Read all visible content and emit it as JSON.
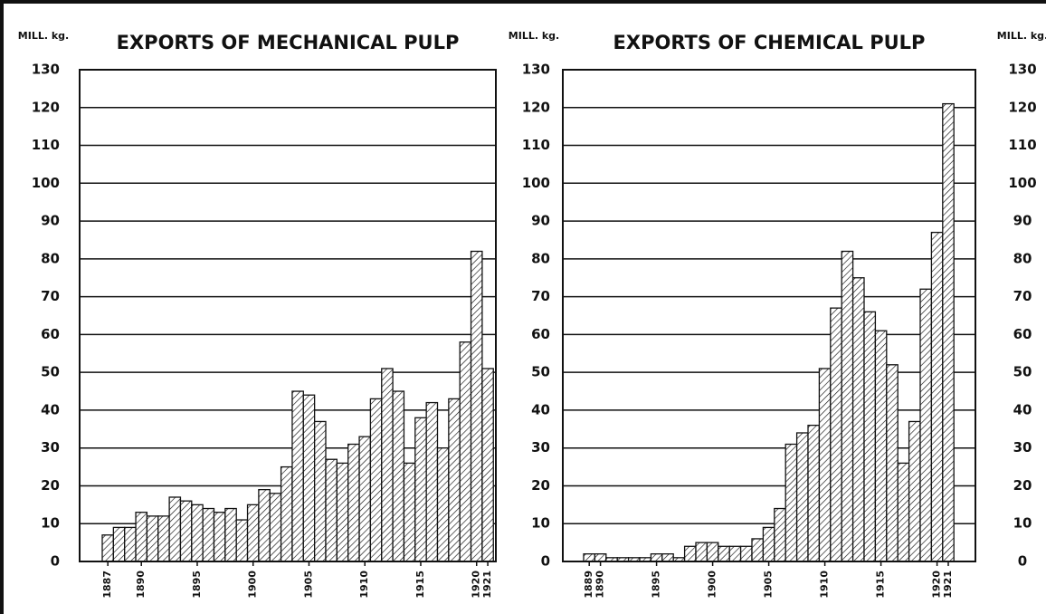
{
  "chart_data": [
    {
      "type": "bar",
      "title": "EXPORTS OF MECHANICAL PULP",
      "y_label": "MILL. kg.",
      "categories": [
        "1887",
        null,
        null,
        "1890",
        null,
        null,
        null,
        null,
        "1895",
        null,
        null,
        null,
        null,
        "1900",
        null,
        null,
        null,
        null,
        "1905",
        null,
        null,
        null,
        null,
        "1910",
        null,
        null,
        null,
        null,
        "1915",
        null,
        null,
        null,
        null,
        "1920",
        "1921"
      ],
      "values": [
        7,
        9,
        9,
        13,
        12,
        12,
        17,
        16,
        15,
        14,
        13,
        14,
        11,
        15,
        19,
        18,
        25,
        45,
        44,
        37,
        27,
        26,
        31,
        33,
        43,
        51,
        45,
        26,
        38,
        42,
        30,
        43,
        58,
        82,
        51
      ],
      "color": "#111111",
      "hatch": true,
      "ylim": [
        0,
        130
      ],
      "yticks": [
        0,
        10,
        20,
        30,
        40,
        50,
        60,
        70,
        80,
        90,
        100,
        110,
        120,
        130
      ],
      "grid": true
    },
    {
      "type": "bar",
      "title": "EXPORTS OF CHEMICAL PULP",
      "y_label": "MILL. kg.",
      "y2_label": "MILL. kg.",
      "categories": [
        "1889",
        "1890",
        null,
        null,
        null,
        null,
        "1895",
        null,
        null,
        null,
        null,
        "1900",
        null,
        null,
        null,
        null,
        "1905",
        null,
        null,
        null,
        null,
        "1910",
        null,
        null,
        null,
        null,
        "1915",
        null,
        null,
        null,
        null,
        "1920",
        "1921"
      ],
      "values": [
        2,
        2,
        1,
        1,
        1,
        1,
        2,
        2,
        1,
        4,
        5,
        5,
        4,
        4,
        4,
        6,
        9,
        14,
        31,
        34,
        36,
        51,
        67,
        82,
        75,
        66,
        61,
        52,
        26,
        37,
        72,
        87,
        121
      ],
      "color": "#111111",
      "hatch": true,
      "ylim": [
        0,
        130
      ],
      "yticks": [
        0,
        10,
        20,
        30,
        40,
        50,
        60,
        70,
        80,
        90,
        100,
        110,
        120,
        130
      ],
      "y2lim": [
        0,
        130
      ],
      "y2ticks": [
        0,
        10,
        20,
        30,
        40,
        50,
        60,
        70,
        80,
        90,
        100,
        110,
        120,
        130
      ],
      "grid": true
    }
  ]
}
